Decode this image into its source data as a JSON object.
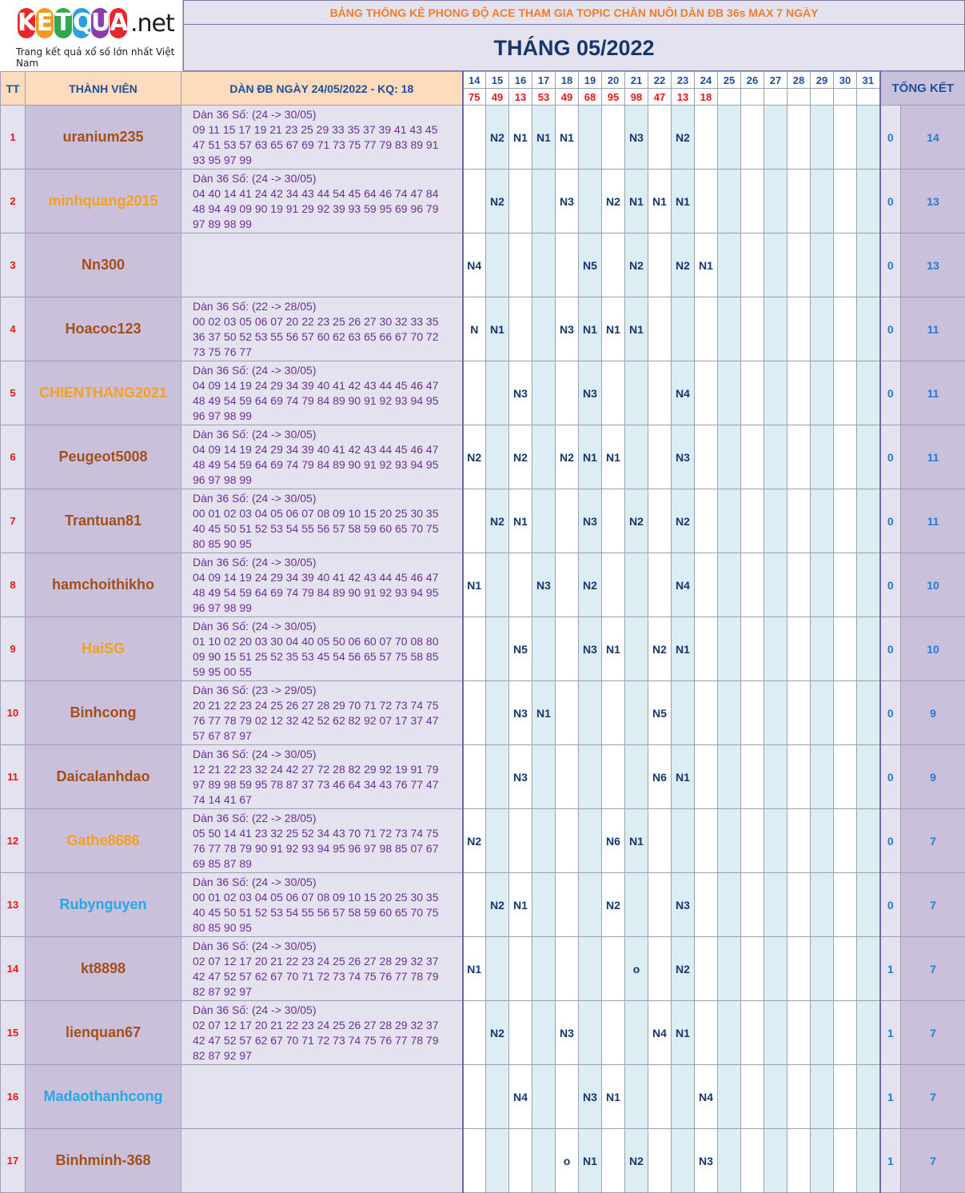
{
  "logo": {
    "letters": [
      "K",
      "E",
      "T",
      "Q",
      "U",
      "A"
    ],
    "letter_colors": [
      "#e8272c",
      "#f39a1e",
      "#30a84e",
      "#2b9fe0",
      "#8a3fb0",
      "#e8272c"
    ],
    "suffix": ".net",
    "tagline": "Trang kết quả xổ số lớn nhất Việt Nam"
  },
  "header": {
    "banner": "BẢNG THỐNG KÊ PHONG ĐỘ ACE THAM GIA TOPIC CHĂN NUÔI DÀN ĐB 36s MAX 7 NGÀY",
    "month": "THÁNG 05/2022"
  },
  "columns": {
    "tt": "TT",
    "member": "THÀNH VIÊN",
    "dan": "DÀN ĐB NGÀY 24/05/2022 - KQ: 18",
    "summary": "TỔNG KẾT"
  },
  "days": [
    "14",
    "15",
    "16",
    "17",
    "18",
    "19",
    "20",
    "21",
    "22",
    "23",
    "24",
    "25",
    "26",
    "27",
    "28",
    "29",
    "30",
    "31"
  ],
  "results": [
    "75",
    "49",
    "13",
    "53",
    "49",
    "68",
    "95",
    "98",
    "47",
    "13",
    "18",
    "",
    "",
    "",
    "",
    "",
    "",
    ""
  ],
  "rows": [
    {
      "tt": "1",
      "name": "uranium235",
      "color": "#a34f15",
      "dan": [
        "Dàn 36 Số: (24 -> 30/05)",
        "09 11 15 17 19 21 23 25 29 33 35 37 39 41 43 45",
        "47 51 53 57 63 65 67 69 71 73 75 77 79 83 89 91",
        "93 95 97 99"
      ],
      "marks": [
        "",
        "N2",
        "N1",
        "N1",
        "N1",
        "",
        "",
        "N3",
        "",
        "N2",
        "",
        "",
        "",
        "",
        "",
        "",
        "",
        ""
      ],
      "zero": "0",
      "total": "14"
    },
    {
      "tt": "2",
      "name": "minhquang2015",
      "color": "#f5a01e",
      "dan": [
        "Dàn 36 Số: (24 -> 30/05)",
        "04 40 14 41 24 42 34 43 44 54 45 64 46 74 47 84",
        "48 94 49 09 90 19 91 29 92 39 93 59 95 69 96 79",
        "97 89 98 99"
      ],
      "marks": [
        "",
        "N2",
        "",
        "",
        "N3",
        "",
        "N2",
        "N1",
        "N1",
        "N1",
        "",
        "",
        "",
        "",
        "",
        "",
        "",
        ""
      ],
      "zero": "0",
      "total": "13"
    },
    {
      "tt": "3",
      "name": "Nn300",
      "color": "#a34f15",
      "dan": [],
      "marks": [
        "N4",
        "",
        "",
        "",
        "",
        "N5",
        "",
        "N2",
        "",
        "N2",
        "N1",
        "",
        "",
        "",
        "",
        "",
        "",
        ""
      ],
      "zero": "0",
      "total": "13"
    },
    {
      "tt": "4",
      "name": "Hoacoc123",
      "color": "#a34f15",
      "dan": [
        "Dàn 36 Số: (22 -> 28/05)",
        "00 02 03 05 06 07 20 22 23 25 26 27 30 32 33 35",
        "36 37 50 52 53 55 56 57 60 62 63 65 66 67 70 72",
        "73 75 76 77"
      ],
      "marks": [
        "N",
        "N1",
        "",
        "",
        "N3",
        "N1",
        "N1",
        "N1",
        "",
        "",
        "",
        "",
        "",
        "",
        "",
        "",
        "",
        ""
      ],
      "zero": "0",
      "total": "11"
    },
    {
      "tt": "5",
      "name": "CHIENTHANG2021",
      "color": "#f5a01e",
      "dan": [
        "Dàn 36 Số: (24 -> 30/05)",
        "04 09 14 19 24 29 34 39 40 41 42 43 44 45 46 47",
        "48 49 54 59 64 69 74 79 84 89 90 91 92 93 94 95",
        "96 97 98 99"
      ],
      "marks": [
        "",
        "",
        "N3",
        "",
        "",
        "N3",
        "",
        "",
        "",
        "N4",
        "",
        "",
        "",
        "",
        "",
        "",
        "",
        ""
      ],
      "zero": "0",
      "total": "11"
    },
    {
      "tt": "6",
      "name": "Peugeot5008",
      "color": "#a34f15",
      "dan": [
        "Dàn 36 Số: (24 -> 30/05)",
        "04 09 14 19 24 29 34 39 40 41 42 43 44 45 46 47",
        "48 49 54 59 64 69 74 79 84 89 90 91 92 93 94 95",
        "96 97 98 99"
      ],
      "marks": [
        "N2",
        "",
        "N2",
        "",
        "N2",
        "N1",
        "N1",
        "",
        "",
        "N3",
        "",
        "",
        "",
        "",
        "",
        "",
        "",
        ""
      ],
      "zero": "0",
      "total": "11"
    },
    {
      "tt": "7",
      "name": "Trantuan81",
      "color": "#a34f15",
      "dan": [
        "Dàn 36 Số: (24 -> 30/05)",
        "00 01 02 03 04 05 06 07 08 09 10 15 20 25 30 35",
        "40 45 50 51 52 53 54 55 56 57 58 59 60 65 70 75",
        "80 85 90 95"
      ],
      "marks": [
        "",
        "N2",
        "N1",
        "",
        "",
        "N3",
        "",
        "N2",
        "",
        "N2",
        "",
        "",
        "",
        "",
        "",
        "",
        "",
        ""
      ],
      "zero": "0",
      "total": "11"
    },
    {
      "tt": "8",
      "name": "hamchoithikho",
      "color": "#a34f15",
      "dan": [
        "Dàn 36 Số: (24 -> 30/05)",
        "04 09 14 19 24 29 34 39 40 41 42 43 44 45 46 47",
        "48 49 54 59 64 69 74 79 84 89 90 91 92 93 94 95",
        "96 97 98 99"
      ],
      "marks": [
        "N1",
        "",
        "",
        "N3",
        "",
        "N2",
        "",
        "",
        "",
        "N4",
        "",
        "",
        "",
        "",
        "",
        "",
        "",
        ""
      ],
      "zero": "0",
      "total": "10"
    },
    {
      "tt": "9",
      "name": "HaiSG",
      "color": "#f5a01e",
      "dan": [
        "Dàn 36 Số: (24 -> 30/05)",
        "01 10 02 20 03 30 04 40 05 50 06 60 07 70 08 80",
        "09 90 15 51 25 52 35 53 45 54 56 65 57 75 58 85",
        "59 95 00 55"
      ],
      "marks": [
        "",
        "",
        "N5",
        "",
        "",
        "N3",
        "N1",
        "",
        "N2",
        "N1",
        "",
        "",
        "",
        "",
        "",
        "",
        "",
        ""
      ],
      "zero": "0",
      "total": "10"
    },
    {
      "tt": "10",
      "name": "Binhcong",
      "color": "#a34f15",
      "dan": [
        "Dàn 36 Số: (23 -> 29/05)",
        "20 21 22 23 24 25 26 27 28 29 70 71 72 73 74 75",
        "76 77 78 79 02 12 32 42 52 62 82 92 07 17 37 47",
        "57 67 87 97"
      ],
      "marks": [
        "",
        "",
        "N3",
        "N1",
        "",
        "",
        "",
        "",
        "N5",
        "",
        "",
        "",
        "",
        "",
        "",
        "",
        "",
        ""
      ],
      "zero": "0",
      "total": "9"
    },
    {
      "tt": "11",
      "name": "Daicalanhdao",
      "color": "#a34f15",
      "dan": [
        "Dàn 36 Số: (24 -> 30/05)",
        "12 21 22 23 32 24 42 27 72 28 82 29 92 19 91 79",
        "97 89 98 59 95 78 87 37 73 46 64 34 43 76 77 47",
        "74 14 41 67"
      ],
      "marks": [
        "",
        "",
        "N3",
        "",
        "",
        "",
        "",
        "",
        "N6",
        "N1",
        "",
        "",
        "",
        "",
        "",
        "",
        "",
        ""
      ],
      "zero": "0",
      "total": "9"
    },
    {
      "tt": "12",
      "name": "Gathe8686",
      "color": "#f5a01e",
      "dan": [
        "Dàn 36 Số: (22 -> 28/05)",
        "05 50 14 41 23 32 25 52 34 43 70 71 72 73 74 75",
        "76 77 78 79 90 91 92 93 94 95 96 97 98 85 07 67",
        "69 85 87 89"
      ],
      "marks": [
        "N2",
        "",
        "",
        "",
        "",
        "",
        "N6",
        "N1",
        "",
        "",
        "",
        "",
        "",
        "",
        "",
        "",
        "",
        ""
      ],
      "zero": "0",
      "total": "7"
    },
    {
      "tt": "13",
      "name": "Rubynguyen",
      "color": "#23a9e6",
      "dan": [
        "Dàn 36 Số: (24 -> 30/05)",
        "00 01 02 03 04 05 06 07 08 09 10 15 20 25 30 35",
        "40 45 50 51 52 53 54 55 56 57 58 59 60 65 70 75",
        "80 85 90 95"
      ],
      "marks": [
        "",
        "N2",
        "N1",
        "",
        "",
        "",
        "N2",
        "",
        "",
        "N3",
        "",
        "",
        "",
        "",
        "",
        "",
        "",
        ""
      ],
      "zero": "0",
      "total": "7"
    },
    {
      "tt": "14",
      "name": "kt8898",
      "color": "#a34f15",
      "dan": [
        "Dàn 36 Số: (24 -> 30/05)",
        "02 07 12 17 20 21 22 23 24 25 26 27 28 29 32 37",
        "42 47 52 57 62 67 70 71 72 73 74 75 76 77 78 79",
        "82 87 92 97"
      ],
      "marks": [
        "N1",
        "",
        "",
        "",
        "",
        "",
        "",
        "o",
        "",
        "N2",
        "",
        "",
        "",
        "",
        "",
        "",
        "",
        ""
      ],
      "zero": "1",
      "total": "7"
    },
    {
      "tt": "15",
      "name": "lienquan67",
      "color": "#a34f15",
      "dan": [
        "Dàn 36 Số: (24 -> 30/05)",
        "02 07 12 17 20 21 22 23 24 25 26 27 28 29 32 37",
        "42 47 52 57 62 67 70 71 72 73 74 75 76 77 78 79",
        "82 87 92 97"
      ],
      "marks": [
        "",
        "N2",
        "",
        "",
        "N3",
        "",
        "",
        "",
        "N4",
        "N1",
        "",
        "",
        "",
        "",
        "",
        "",
        "",
        ""
      ],
      "zero": "1",
      "total": "7"
    },
    {
      "tt": "16",
      "name": "Madaothanhcong",
      "color": "#23a9e6",
      "dan": [],
      "marks": [
        "",
        "",
        "N4",
        "",
        "",
        "N3",
        "N1",
        "",
        "",
        "",
        "N4",
        "",
        "",
        "",
        "",
        "",
        "",
        ""
      ],
      "zero": "1",
      "total": "7"
    },
    {
      "tt": "17",
      "name": "Binhminh-368",
      "color": "#a34f15",
      "dan": [],
      "marks": [
        "",
        "",
        "",
        "",
        "o",
        "N1",
        "",
        "N2",
        "",
        "",
        "N3",
        "",
        "",
        "",
        "",
        "",
        "",
        ""
      ],
      "zero": "1",
      "total": "7"
    }
  ]
}
